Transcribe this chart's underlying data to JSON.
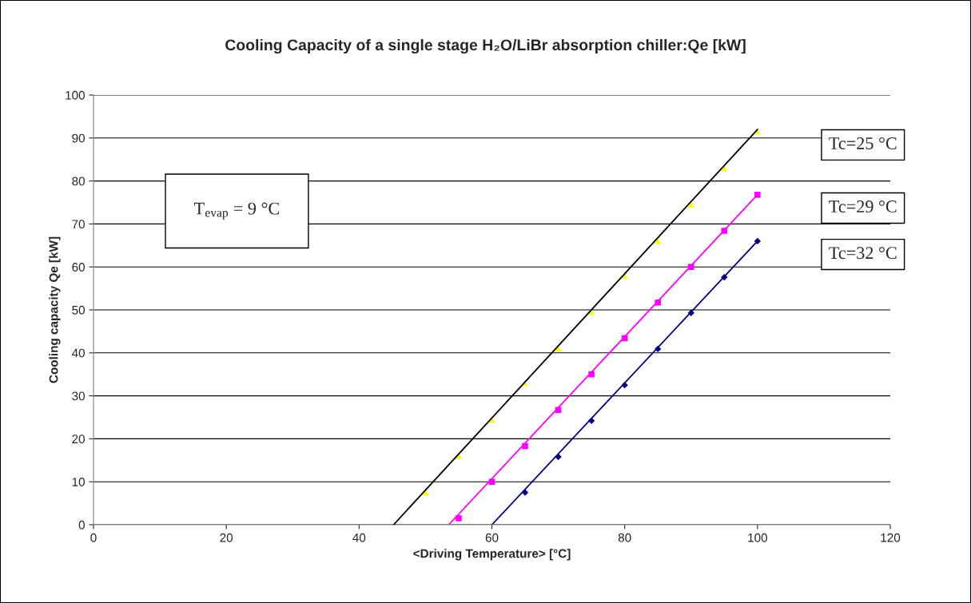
{
  "chart_data": {
    "type": "scatter",
    "title": "Cooling Capacity of a single stage H₂O/LiBr absorption chiller:Qe [kW]",
    "xlabel": "<Driving Temperature> [°C]",
    "ylabel": "Cooling capacity Qe [kW]",
    "xlim": [
      0,
      120
    ],
    "ylim": [
      0,
      100
    ],
    "xticks": [
      0,
      20,
      40,
      60,
      80,
      100,
      120
    ],
    "yticks": [
      0,
      10,
      20,
      30,
      40,
      50,
      60,
      70,
      80,
      90,
      100
    ],
    "grid": "y",
    "legend": false,
    "annotations": [
      "T$_{evap}$ = 9 °C"
    ],
    "series": [
      {
        "type": "line",
        "color": "#000000",
        "marker": "none",
        "x": [
          45.2,
          100
        ],
        "values": [
          0,
          92
        ]
      },
      {
        "name": "Tc=25 °C",
        "color": "#ffff00",
        "marker": "triangle",
        "x": [
          50,
          55,
          60,
          65,
          70,
          75,
          80,
          85,
          90,
          95,
          100
        ],
        "values": [
          7.5,
          16,
          24.5,
          33,
          41,
          49.5,
          58,
          66,
          74.5,
          83,
          91.5
        ]
      },
      {
        "type": "line",
        "color": "#ff00ff",
        "marker": "none",
        "x": [
          53.5,
          100
        ],
        "values": [
          0,
          76.8
        ]
      },
      {
        "name": "Tc=29 °C",
        "color": "#ff00ff",
        "marker": "square",
        "x": [
          55,
          60,
          65,
          70,
          75,
          80,
          85,
          90,
          95,
          100
        ],
        "values": [
          1.5,
          10,
          18.3,
          26.7,
          35,
          43.4,
          51.7,
          60,
          68.4,
          76.8
        ]
      },
      {
        "type": "line",
        "color": "#000080",
        "marker": "none",
        "x": [
          60,
          100
        ],
        "values": [
          0,
          66
        ]
      },
      {
        "name": "Tc=32 °C",
        "color": "#000080",
        "marker": "diamond",
        "x": [
          65,
          70,
          75,
          80,
          85,
          90,
          95,
          100
        ],
        "values": [
          7.5,
          15.8,
          24.2,
          32.5,
          40.9,
          49.3,
          57.6,
          66
        ]
      }
    ]
  }
}
